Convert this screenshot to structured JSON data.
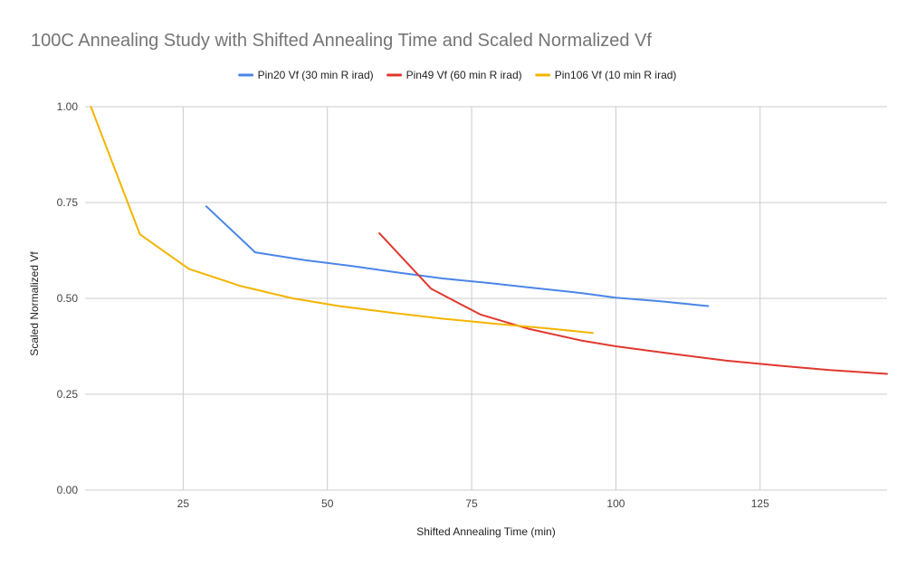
{
  "chart_data": {
    "type": "line",
    "title": "100C Annealing Study with Shifted Annealing Time and Scaled Normalized Vf",
    "xlabel": "Shifted Annealing Time (min)",
    "ylabel": "Scaled Normalized Vf",
    "xlim": [
      8,
      147
    ],
    "ylim": [
      0,
      1
    ],
    "x_ticks": [
      25,
      50,
      75,
      100,
      125
    ],
    "y_ticks": [
      0,
      0.25,
      0.5,
      0.75,
      1
    ],
    "x_tick_labels": [
      "25",
      "50",
      "75",
      "100",
      "125"
    ],
    "y_tick_labels": [
      "0.00",
      "0.25",
      "0.50",
      "0.75",
      "1.00"
    ],
    "grid": true,
    "legend_position": "top",
    "series": [
      {
        "name": "Pin20 Vf (30 min R irad)",
        "color": "#4a86e8",
        "x": [
          29,
          37.5,
          46,
          54,
          62,
          70,
          78,
          86,
          94,
          100,
          108,
          116
        ],
        "y": [
          0.74,
          0.62,
          0.6,
          0.585,
          0.568,
          0.552,
          0.54,
          0.527,
          0.514,
          0.502,
          0.492,
          0.48
        ]
      },
      {
        "name": "Pin49 Vf (60 min R irad)",
        "color": "#e0382e",
        "x": [
          59,
          68,
          76.5,
          85,
          94,
          100,
          110,
          119,
          128,
          137,
          147
        ],
        "y": [
          0.67,
          0.525,
          0.458,
          0.42,
          0.39,
          0.375,
          0.355,
          0.338,
          0.325,
          0.313,
          0.303
        ]
      },
      {
        "name": "Pin106 Vf (10 min R irad)",
        "color": "#f4b400",
        "x": [
          9,
          17.5,
          26,
          35,
          44,
          52,
          61,
          70,
          79,
          88,
          96
        ],
        "y": [
          1.0,
          0.667,
          0.577,
          0.532,
          0.5,
          0.48,
          0.463,
          0.447,
          0.434,
          0.422,
          0.41
        ]
      }
    ]
  }
}
